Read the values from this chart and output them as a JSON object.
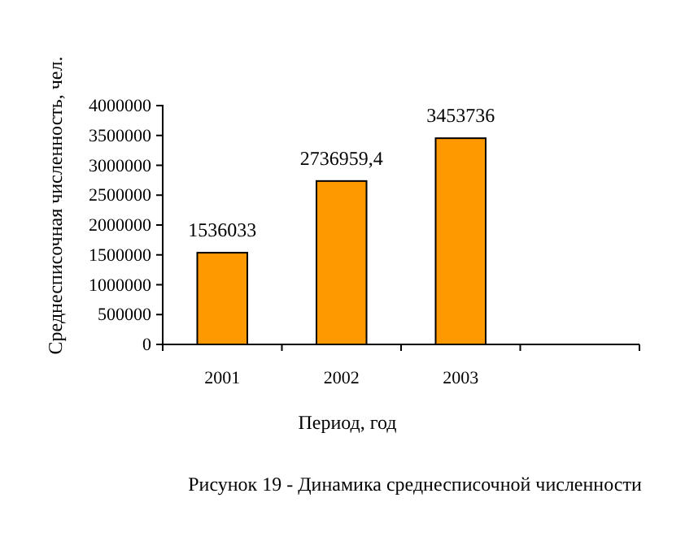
{
  "chart_data": {
    "type": "bar",
    "xlabel": "Период, год",
    "ylabel": "Среднесписочная численность, чел.",
    "annotations": [
      "Рисунок  19 - Динамика среднесписочной численности"
    ],
    "categories": [
      "2001",
      "2002",
      "2003",
      null
    ],
    "values": [
      1536033,
      2736959.4,
      3453736,
      null
    ],
    "value_labels": [
      "1536033",
      "2736959,4",
      "3453736",
      null
    ],
    "color": "#ff9900",
    "ylim": [
      0,
      4000000
    ],
    "yticks": [
      0,
      500000,
      1000000,
      1500000,
      2000000,
      2500000,
      3000000,
      3500000,
      4000000
    ],
    "grid": false
  }
}
